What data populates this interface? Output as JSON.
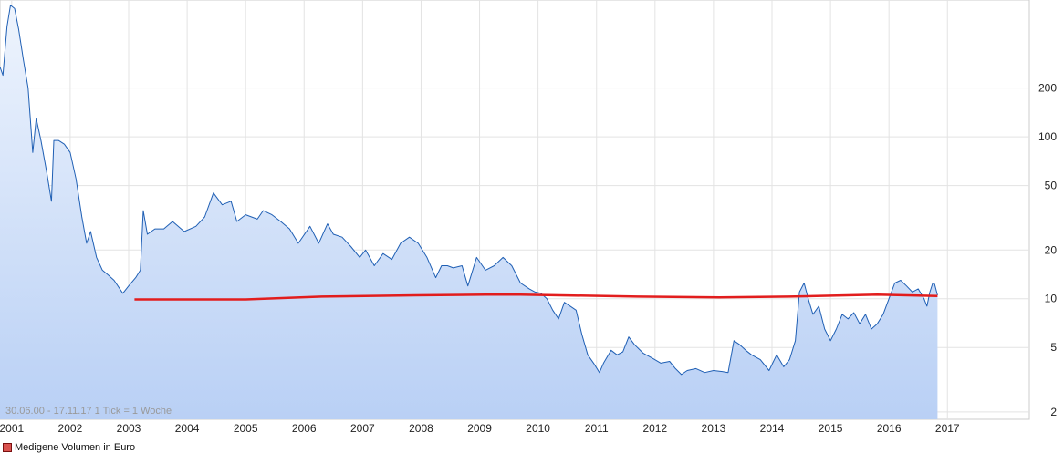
{
  "chart_data": {
    "type": "line",
    "yscale": "log",
    "ylim": [
      1.8,
      700
    ],
    "xlim": [
      2000.3,
      2017.9
    ],
    "y_ticks": [
      {
        "value": 2,
        "label": "2"
      },
      {
        "value": 5,
        "label": "5"
      },
      {
        "value": 10,
        "label": "10"
      },
      {
        "value": 20,
        "label": "20"
      },
      {
        "value": 50,
        "label": "50"
      },
      {
        "value": 100,
        "label": "100"
      },
      {
        "value": 200,
        "label": "200"
      }
    ],
    "x_ticks": [
      {
        "value": 2000.5,
        "label": "2001"
      },
      {
        "value": 2001.5,
        "label": "2002"
      },
      {
        "value": 2002.5,
        "label": "2003"
      },
      {
        "value": 2003.5,
        "label": "2004"
      },
      {
        "value": 2004.5,
        "label": "2005"
      },
      {
        "value": 2005.5,
        "label": "2006"
      },
      {
        "value": 2006.5,
        "label": "2007"
      },
      {
        "value": 2007.5,
        "label": "2008"
      },
      {
        "value": 2008.5,
        "label": "2009"
      },
      {
        "value": 2009.5,
        "label": "2010"
      },
      {
        "value": 2010.5,
        "label": "2011"
      },
      {
        "value": 2011.5,
        "label": "2012"
      },
      {
        "value": 2012.5,
        "label": "2013"
      },
      {
        "value": 2013.5,
        "label": "2014"
      },
      {
        "value": 2014.5,
        "label": "2015"
      },
      {
        "value": 2015.5,
        "label": "2016"
      },
      {
        "value": 2016.5,
        "label": "2017"
      }
    ],
    "grid": true,
    "series": [
      {
        "name": "Medigene Volumen in Euro",
        "color": "#1f5fb4",
        "fill": "#c2d6f7",
        "points": [
          [
            2000.3,
            270
          ],
          [
            2000.35,
            240
          ],
          [
            2000.42,
            480
          ],
          [
            2000.48,
            650
          ],
          [
            2000.55,
            620
          ],
          [
            2000.62,
            460
          ],
          [
            2000.7,
            300
          ],
          [
            2000.78,
            200
          ],
          [
            2000.86,
            80
          ],
          [
            2000.92,
            130
          ],
          [
            2001.0,
            95
          ],
          [
            2001.1,
            60
          ],
          [
            2001.18,
            40
          ],
          [
            2001.22,
            95
          ],
          [
            2001.3,
            95
          ],
          [
            2001.4,
            90
          ],
          [
            2001.5,
            80
          ],
          [
            2001.6,
            55
          ],
          [
            2001.7,
            32
          ],
          [
            2001.78,
            22
          ],
          [
            2001.85,
            26
          ],
          [
            2001.95,
            18
          ],
          [
            2002.05,
            15
          ],
          [
            2002.15,
            14
          ],
          [
            2002.25,
            13
          ],
          [
            2002.4,
            10.8
          ],
          [
            2002.5,
            12
          ],
          [
            2002.62,
            13.5
          ],
          [
            2002.7,
            15
          ],
          [
            2002.75,
            35
          ],
          [
            2002.82,
            25
          ],
          [
            2002.95,
            27
          ],
          [
            2003.1,
            27
          ],
          [
            2003.25,
            30
          ],
          [
            2003.45,
            26
          ],
          [
            2003.65,
            28
          ],
          [
            2003.8,
            32
          ],
          [
            2003.95,
            45
          ],
          [
            2004.1,
            38
          ],
          [
            2004.25,
            40
          ],
          [
            2004.35,
            30
          ],
          [
            2004.5,
            33
          ],
          [
            2004.7,
            31
          ],
          [
            2004.8,
            35
          ],
          [
            2004.95,
            33
          ],
          [
            2005.1,
            30
          ],
          [
            2005.25,
            27
          ],
          [
            2005.4,
            22
          ],
          [
            2005.6,
            28
          ],
          [
            2005.75,
            22
          ],
          [
            2005.9,
            29
          ],
          [
            2006.0,
            25
          ],
          [
            2006.15,
            24
          ],
          [
            2006.3,
            21
          ],
          [
            2006.45,
            18
          ],
          [
            2006.55,
            20
          ],
          [
            2006.7,
            16
          ],
          [
            2006.85,
            19
          ],
          [
            2007.0,
            17.5
          ],
          [
            2007.15,
            22
          ],
          [
            2007.3,
            24
          ],
          [
            2007.45,
            22
          ],
          [
            2007.6,
            18
          ],
          [
            2007.75,
            13.5
          ],
          [
            2007.85,
            16
          ],
          [
            2007.95,
            16
          ],
          [
            2008.05,
            15.5
          ],
          [
            2008.2,
            16
          ],
          [
            2008.3,
            12
          ],
          [
            2008.45,
            18
          ],
          [
            2008.6,
            15
          ],
          [
            2008.75,
            16
          ],
          [
            2008.9,
            18
          ],
          [
            2009.05,
            16
          ],
          [
            2009.2,
            12.5
          ],
          [
            2009.35,
            11.5
          ],
          [
            2009.45,
            11
          ],
          [
            2009.55,
            10.8
          ],
          [
            2009.65,
            10
          ],
          [
            2009.75,
            8.5
          ],
          [
            2009.85,
            7.5
          ],
          [
            2009.95,
            9.5
          ],
          [
            2010.05,
            9
          ],
          [
            2010.15,
            8.5
          ],
          [
            2010.25,
            6
          ],
          [
            2010.35,
            4.5
          ],
          [
            2010.45,
            4
          ],
          [
            2010.55,
            3.5
          ],
          [
            2010.62,
            4
          ],
          [
            2010.75,
            4.8
          ],
          [
            2010.85,
            4.5
          ],
          [
            2010.95,
            4.7
          ],
          [
            2011.05,
            5.8
          ],
          [
            2011.15,
            5.2
          ],
          [
            2011.3,
            4.6
          ],
          [
            2011.45,
            4.3
          ],
          [
            2011.6,
            4.0
          ],
          [
            2011.75,
            4.1
          ],
          [
            2011.85,
            3.7
          ],
          [
            2011.95,
            3.4
          ],
          [
            2012.05,
            3.6
          ],
          [
            2012.2,
            3.7
          ],
          [
            2012.35,
            3.5
          ],
          [
            2012.5,
            3.6
          ],
          [
            2012.65,
            3.55
          ],
          [
            2012.75,
            3.5
          ],
          [
            2012.85,
            5.5
          ],
          [
            2012.95,
            5.2
          ],
          [
            2013.05,
            4.8
          ],
          [
            2013.15,
            4.5
          ],
          [
            2013.3,
            4.2
          ],
          [
            2013.45,
            3.6
          ],
          [
            2013.58,
            4.5
          ],
          [
            2013.7,
            3.8
          ],
          [
            2013.8,
            4.2
          ],
          [
            2013.9,
            5.5
          ],
          [
            2013.97,
            11
          ],
          [
            2014.05,
            12.5
          ],
          [
            2014.12,
            10
          ],
          [
            2014.2,
            8
          ],
          [
            2014.3,
            9
          ],
          [
            2014.4,
            6.5
          ],
          [
            2014.5,
            5.5
          ],
          [
            2014.6,
            6.5
          ],
          [
            2014.7,
            8
          ],
          [
            2014.8,
            7.5
          ],
          [
            2014.9,
            8.2
          ],
          [
            2015.0,
            7
          ],
          [
            2015.1,
            8
          ],
          [
            2015.2,
            6.5
          ],
          [
            2015.3,
            7
          ],
          [
            2015.4,
            8
          ],
          [
            2015.5,
            10
          ],
          [
            2015.6,
            12.5
          ],
          [
            2015.7,
            13
          ],
          [
            2015.8,
            12
          ],
          [
            2015.9,
            11
          ],
          [
            2016.0,
            11.5
          ],
          [
            2016.1,
            10
          ],
          [
            2016.15,
            9
          ],
          [
            2016.2,
            11
          ],
          [
            2016.25,
            12.5
          ],
          [
            2016.28,
            12.3
          ],
          [
            2016.33,
            10.5
          ]
        ]
      },
      {
        "name": "",
        "color": "#e21d1d",
        "points": [
          [
            2002.6,
            9.9
          ],
          [
            2004.5,
            9.9
          ],
          [
            2005.8,
            10.3
          ],
          [
            2007.4,
            10.5
          ],
          [
            2008.6,
            10.6
          ],
          [
            2009.2,
            10.6
          ],
          [
            2011.2,
            10.3
          ],
          [
            2012.6,
            10.2
          ],
          [
            2013.8,
            10.3
          ],
          [
            2015.3,
            10.6
          ],
          [
            2016.33,
            10.4
          ]
        ]
      }
    ]
  },
  "footnote": "30.06.00 - 17.11.17   1 Tick = 1 Woche",
  "legend_label": "Medigene Volumen in Euro",
  "legend_color": "#d9534f"
}
